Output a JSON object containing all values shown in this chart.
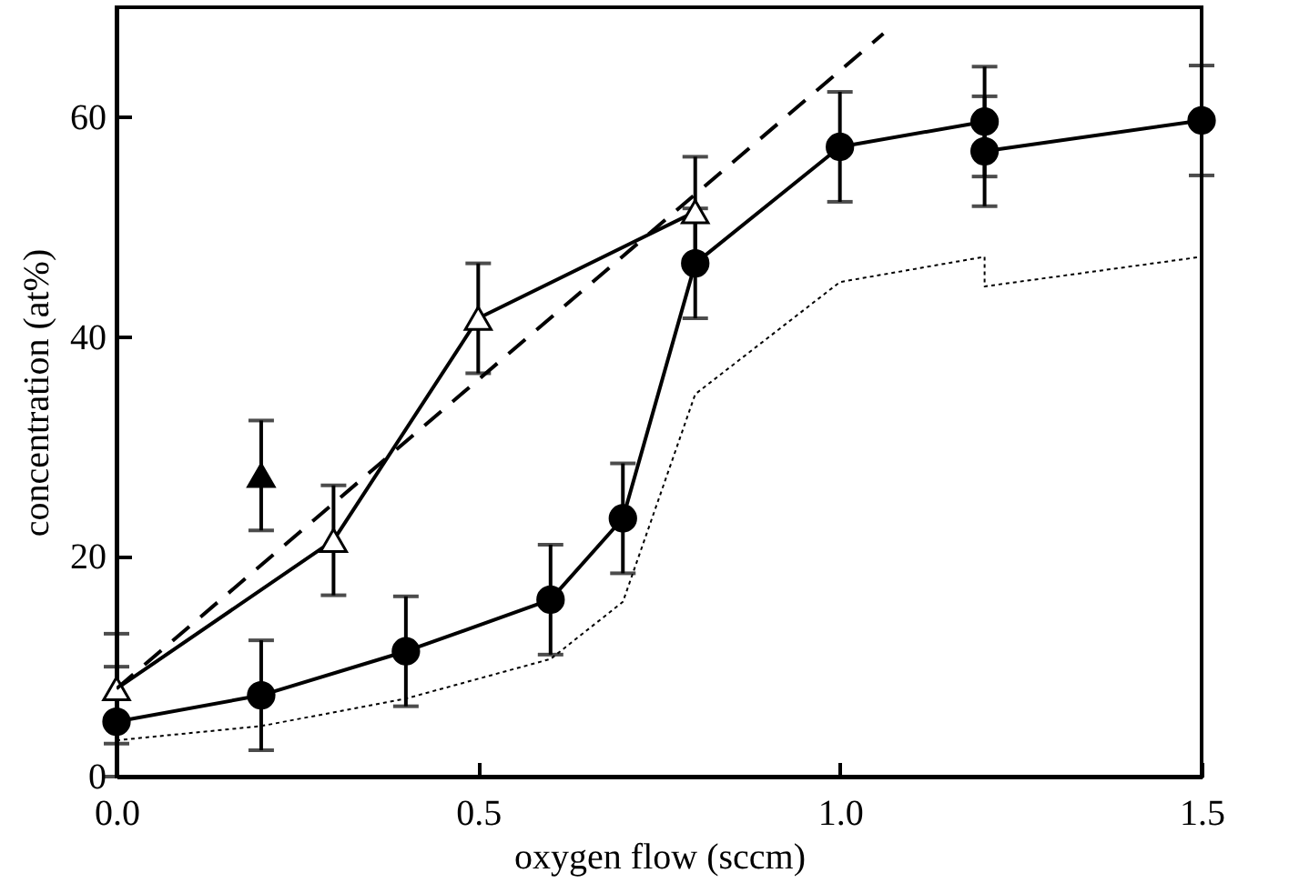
{
  "chart_data": {
    "type": "line",
    "xlabel": "oxygen flow (sccm)",
    "ylabel": "concentration (at%)",
    "xlim": [
      0,
      1.5
    ],
    "ylim": [
      0,
      70
    ],
    "xticks": [
      {
        "value": 0,
        "label": "0.0"
      },
      {
        "value": 0.5,
        "label": "0.5"
      },
      {
        "value": 1,
        "label": "1.0"
      },
      {
        "value": 1.5,
        "label": "1.5"
      }
    ],
    "yticks": [
      0,
      20,
      40,
      60
    ],
    "grid": false,
    "series": [
      {
        "color": "#000000",
        "marker": "circle",
        "line_style": "solid",
        "x": [
          0,
          0.2,
          0.4,
          0.6,
          0.7,
          0.8,
          1.0,
          1.2,
          1.2,
          1.5
        ],
        "values": [
          5,
          7.4,
          11.4,
          16.1,
          23.5,
          46.7,
          57.3,
          59.6,
          56.9,
          59.7
        ],
        "errors": [
          5,
          5,
          5,
          5,
          5,
          5,
          5,
          5,
          5,
          5
        ]
      },
      {
        "color": "#000000",
        "marker": "triangle",
        "line_style": "solid",
        "x": [
          0,
          0.3,
          0.5,
          0.8
        ],
        "values": [
          8,
          21.5,
          41.7,
          51.4
        ],
        "errors": [
          5,
          5,
          5,
          5
        ]
      },
      {
        "type": "scatter",
        "color": "#000000",
        "marker": "triangle",
        "x": [
          0.2
        ],
        "values": [
          27.4
        ],
        "errors": [
          5
        ]
      },
      {
        "color": "#000000",
        "marker": "none",
        "line_style": "dashed",
        "x": [
          0,
          1.06
        ],
        "values": [
          8,
          67.6
        ]
      },
      {
        "color": "#000000",
        "marker": "none",
        "line_style": "dotted",
        "x": [
          0,
          0.2,
          0.4,
          0.6,
          0.7,
          0.8,
          1.0,
          1.2,
          1.2,
          1.5
        ],
        "values": [
          3.3,
          4.6,
          7.1,
          10.7,
          15.9,
          34.8,
          45,
          47.3,
          44.6,
          47.3
        ]
      }
    ]
  }
}
